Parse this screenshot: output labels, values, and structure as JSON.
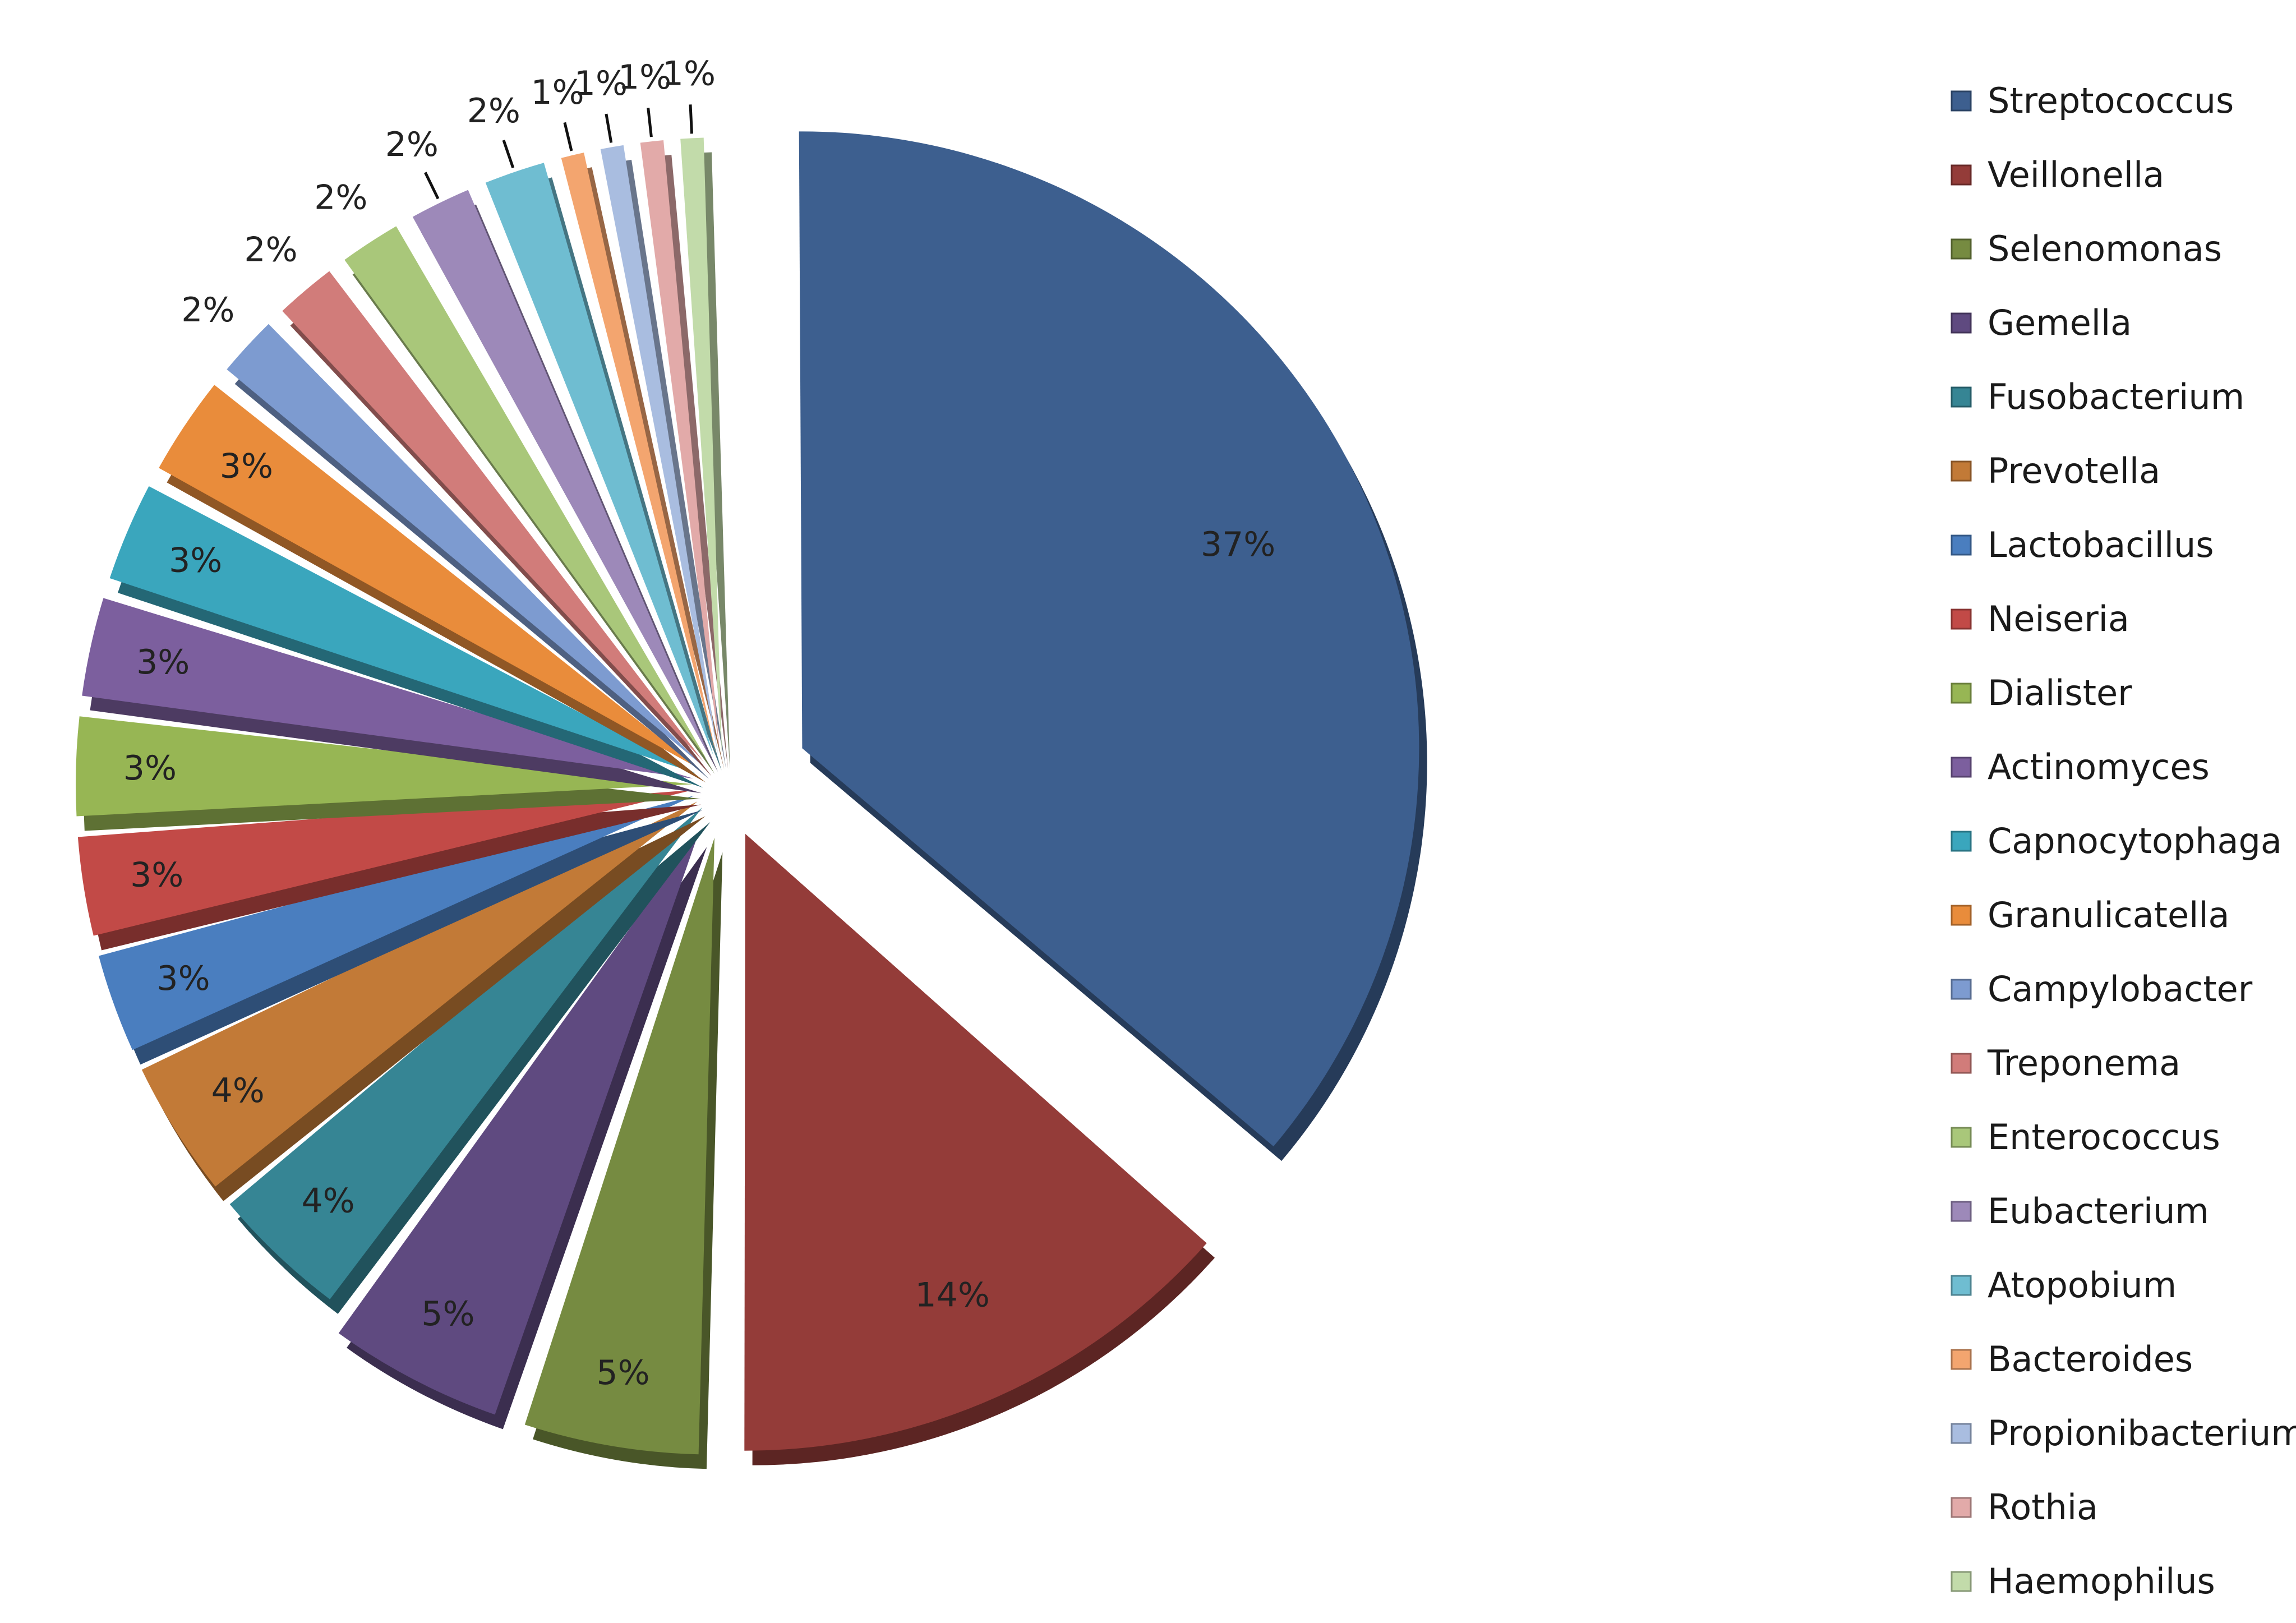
{
  "chart_data": {
    "type": "pie",
    "title": "",
    "legend_position": "right",
    "slices": [
      {
        "label": "Streptococcus",
        "value": 37,
        "value_label": "37%",
        "color": "#3d5f8f"
      },
      {
        "label": "Veillonella",
        "value": 14,
        "value_label": "14%",
        "color": "#943c39"
      },
      {
        "label": "Selenomonas",
        "value": 5,
        "value_label": "5%",
        "color": "#768b41"
      },
      {
        "label": "Gemella",
        "value": 5,
        "value_label": "5%",
        "color": "#5f4a80"
      },
      {
        "label": "Fusobacterium",
        "value": 4,
        "value_label": "4%",
        "color": "#368594"
      },
      {
        "label": "Prevotella",
        "value": 4,
        "value_label": "4%",
        "color": "#c27a37"
      },
      {
        "label": "Lactobacillus",
        "value": 3,
        "value_label": "3%",
        "color": "#4a7ebf"
      },
      {
        "label": "Neiseria",
        "value": 3,
        "value_label": "3%",
        "color": "#c24a47"
      },
      {
        "label": "Dialister",
        "value": 3,
        "value_label": "3%",
        "color": "#97b654"
      },
      {
        "label": "Actinomyces",
        "value": 3,
        "value_label": "3%",
        "color": "#7c5f9e"
      },
      {
        "label": "Capnocytophaga",
        "value": 3,
        "value_label": "3%",
        "color": "#3aa6bd"
      },
      {
        "label": "Granulicatella",
        "value": 3,
        "value_label": "3%",
        "color": "#e98c3b"
      },
      {
        "label": "Campylobacter",
        "value": 2,
        "value_label": "2%",
        "color": "#7d9bd0"
      },
      {
        "label": "Treponema",
        "value": 2,
        "value_label": "2%",
        "color": "#d17c7a"
      },
      {
        "label": "Enterococcus",
        "value": 2,
        "value_label": "2%",
        "color": "#a9c77a"
      },
      {
        "label": "Eubacterium",
        "value": 2,
        "value_label": "2%",
        "color": "#9d89b9"
      },
      {
        "label": "Atopobium",
        "value": 2,
        "value_label": "2%",
        "color": "#6fbdd1"
      },
      {
        "label": "Bacteroides",
        "value": 1,
        "value_label": "1%",
        "color": "#f3a56f"
      },
      {
        "label": "Propionibacterium",
        "value": 1,
        "value_label": "1%",
        "color": "#a9bde0"
      },
      {
        "label": "Rothia",
        "value": 1,
        "value_label": "1%",
        "color": "#e2aaa9"
      },
      {
        "label": "Haemophilus",
        "value": 1,
        "value_label": "1%",
        "color": "#c2dbaa"
      }
    ]
  }
}
